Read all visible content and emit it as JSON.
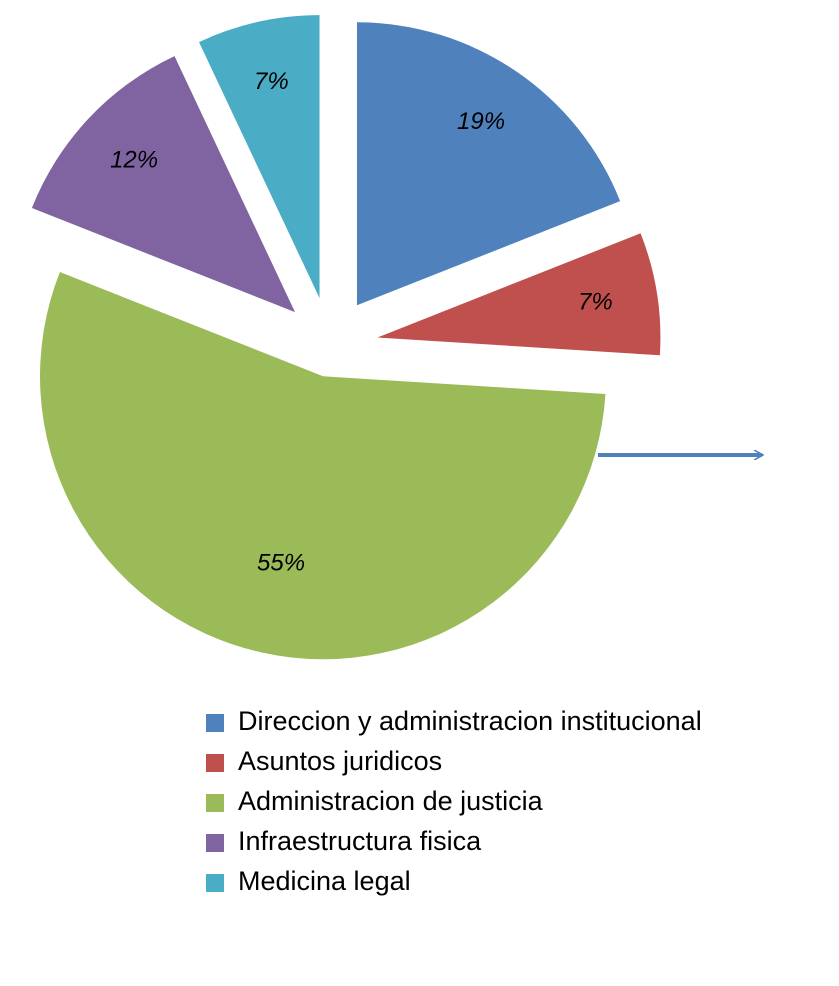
{
  "chart_data": {
    "type": "pie",
    "categories": [
      "Direccion y administracion institucional",
      "Asuntos juridicos",
      "Administracion de justicia",
      "Infraestructura fisica",
      "Medicina legal"
    ],
    "values": [
      19,
      7,
      55,
      12,
      7
    ],
    "value_labels": [
      "19%",
      "7%",
      "55%",
      "12%",
      "7%"
    ],
    "colors": [
      "#4f81bd",
      "#c0504d",
      "#9bbb59",
      "#8064a2",
      "#4bacc6"
    ],
    "legend": "bottom"
  }
}
